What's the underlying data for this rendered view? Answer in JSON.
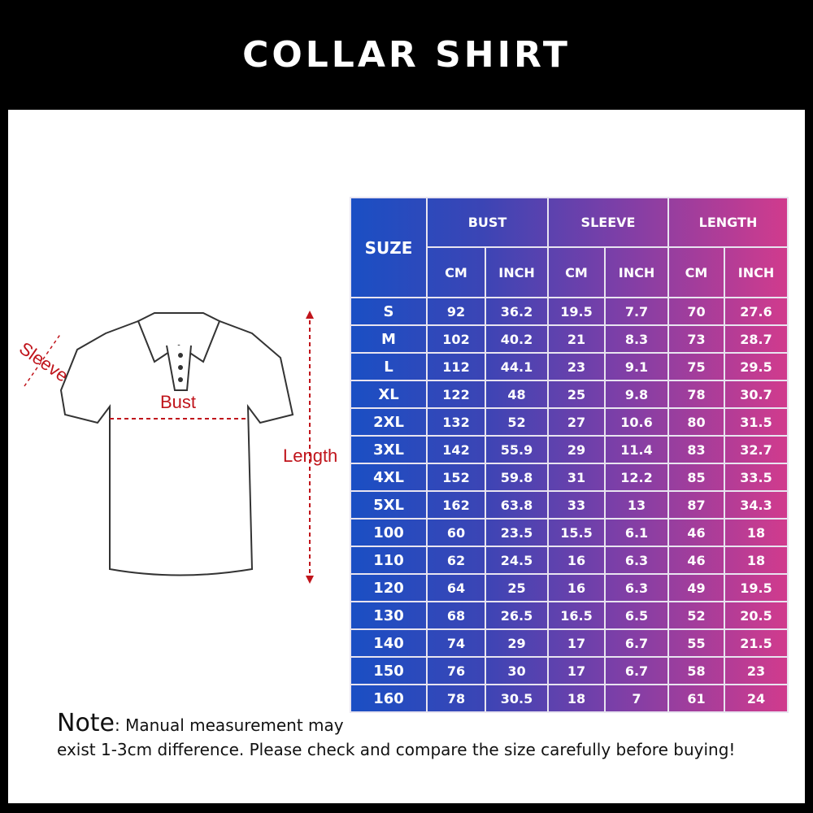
{
  "title": "COLLAR SHIRT",
  "diagram_labels": {
    "sleeve": "Sleeve",
    "bust": "Bust",
    "length": "Length"
  },
  "table": {
    "size_header": "SUZE",
    "groups": [
      "BUST",
      "SLEEVE",
      "LENGTH"
    ],
    "units": [
      "CM",
      "INCH",
      "CM",
      "INCH",
      "CM",
      "INCH"
    ],
    "rows": [
      [
        "S",
        "92",
        "36.2",
        "19.5",
        "7.7",
        "70",
        "27.6"
      ],
      [
        "M",
        "102",
        "40.2",
        "21",
        "8.3",
        "73",
        "28.7"
      ],
      [
        "L",
        "112",
        "44.1",
        "23",
        "9.1",
        "75",
        "29.5"
      ],
      [
        "XL",
        "122",
        "48",
        "25",
        "9.8",
        "78",
        "30.7"
      ],
      [
        "2XL",
        "132",
        "52",
        "27",
        "10.6",
        "80",
        "31.5"
      ],
      [
        "3XL",
        "142",
        "55.9",
        "29",
        "11.4",
        "83",
        "32.7"
      ],
      [
        "4XL",
        "152",
        "59.8",
        "31",
        "12.2",
        "85",
        "33.5"
      ],
      [
        "5XL",
        "162",
        "63.8",
        "33",
        "13",
        "87",
        "34.3"
      ],
      [
        "100",
        "60",
        "23.5",
        "15.5",
        "6.1",
        "46",
        "18"
      ],
      [
        "110",
        "62",
        "24.5",
        "16",
        "6.3",
        "46",
        "18"
      ],
      [
        "120",
        "64",
        "25",
        "16",
        "6.3",
        "49",
        "19.5"
      ],
      [
        "130",
        "68",
        "26.5",
        "16.5",
        "6.5",
        "52",
        "20.5"
      ],
      [
        "140",
        "74",
        "29",
        "17",
        "6.7",
        "55",
        "21.5"
      ],
      [
        "150",
        "76",
        "30",
        "17",
        "6.7",
        "58",
        "23"
      ],
      [
        "160",
        "78",
        "30.5",
        "18",
        "7",
        "61",
        "24"
      ]
    ]
  },
  "note": {
    "label": "Note",
    "text1": ": Manual measurement may",
    "text2": "exist 1-3cm difference. Please check and compare the size carefully before buying!"
  },
  "colors": {
    "gradient_start": "#1a4fc4",
    "gradient_end": "#d13b8d",
    "annotation": "#c0141b"
  }
}
